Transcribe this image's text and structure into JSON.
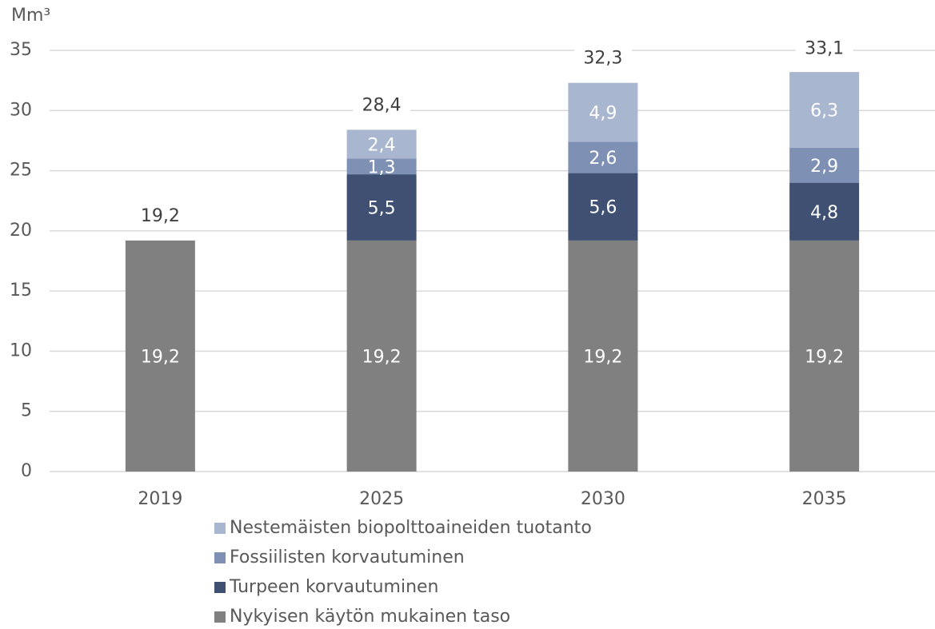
{
  "chart_data": {
    "type": "stacked_bar",
    "y_label": "Mm³",
    "categories": [
      "2019",
      "2025",
      "2030",
      "2035"
    ],
    "series": [
      {
        "name": "Nykyisen käytön mukainen taso",
        "color": "#808080",
        "values": [
          19.2,
          19.2,
          19.2,
          19.2
        ],
        "value_labels": [
          "19,2",
          "19,2",
          "19,2",
          "19,2"
        ]
      },
      {
        "name": "Turpeen korvautuminen",
        "color": "#3f5073",
        "values": [
          null,
          5.5,
          5.6,
          4.8
        ],
        "value_labels": [
          null,
          "5,5",
          "5,6",
          "4,8"
        ]
      },
      {
        "name": "Fossiilisten korvautuminen",
        "color": "#7e91b5",
        "values": [
          null,
          1.3,
          2.6,
          2.9
        ],
        "value_labels": [
          null,
          "1,3",
          "2,6",
          "2,9"
        ]
      },
      {
        "name": "Nestemäisten biopolttoaineiden tuotanto",
        "color": "#a9b6d0",
        "values": [
          null,
          2.4,
          4.9,
          6.3
        ],
        "value_labels": [
          null,
          "2,4",
          "4,9",
          "6,3"
        ]
      }
    ],
    "totals": [
      19.2,
      28.4,
      32.3,
      33.1
    ],
    "total_labels": [
      "19,2",
      "28,4",
      "32,3",
      "33,1"
    ],
    "ylim": [
      0,
      35
    ],
    "yticks": [
      0,
      5,
      10,
      15,
      20,
      25,
      30,
      35
    ],
    "grid": true
  }
}
